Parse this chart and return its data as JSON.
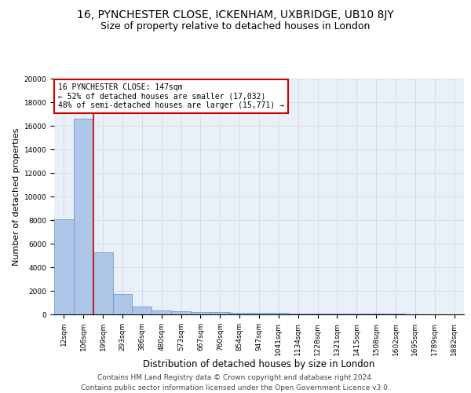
{
  "title": "16, PYNCHESTER CLOSE, ICKENHAM, UXBRIDGE, UB10 8JY",
  "subtitle": "Size of property relative to detached houses in London",
  "xlabel": "Distribution of detached houses by size in London",
  "ylabel": "Number of detached properties",
  "footer_line1": "Contains HM Land Registry data © Crown copyright and database right 2024.",
  "footer_line2": "Contains public sector information licensed under the Open Government Licence v3.0.",
  "bar_labels": [
    "12sqm",
    "106sqm",
    "199sqm",
    "293sqm",
    "386sqm",
    "480sqm",
    "573sqm",
    "667sqm",
    "760sqm",
    "854sqm",
    "947sqm",
    "1041sqm",
    "1134sqm",
    "1228sqm",
    "1321sqm",
    "1415sqm",
    "1508sqm",
    "1602sqm",
    "1695sqm",
    "1789sqm",
    "1882sqm"
  ],
  "bar_values": [
    8100,
    16600,
    5300,
    1750,
    650,
    350,
    275,
    200,
    175,
    150,
    130,
    110,
    90,
    75,
    60,
    50,
    40,
    35,
    30,
    25,
    20
  ],
  "bar_color": "#aec6e8",
  "bar_edge_color": "#5b8fc9",
  "annotation_text": "16 PYNCHESTER CLOSE: 147sqm\n← 52% of detached houses are smaller (17,032)\n48% of semi-detached houses are larger (15,771) →",
  "annotation_box_color": "#ffffff",
  "annotation_box_edge_color": "#cc0000",
  "red_line_x": 1.5,
  "red_line_color": "#cc0000",
  "ylim": [
    0,
    20000
  ],
  "yticks": [
    0,
    2000,
    4000,
    6000,
    8000,
    10000,
    12000,
    14000,
    16000,
    18000,
    20000
  ],
  "grid_color": "#d0d8e8",
  "background_color": "#eaf0f8",
  "title_fontsize": 10,
  "subtitle_fontsize": 9,
  "xlabel_fontsize": 8.5,
  "ylabel_fontsize": 8,
  "tick_fontsize": 6.5,
  "annotation_fontsize": 7,
  "footer_fontsize": 6.5
}
